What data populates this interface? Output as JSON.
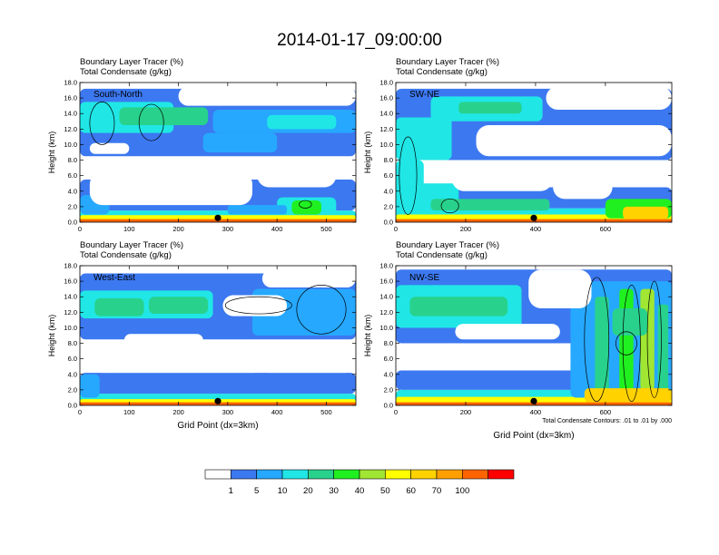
{
  "chart_data": {
    "title": "2014-01-17_09:00:00",
    "type": "heatmap",
    "fields": [
      "Boundary Layer Tracer",
      "Total Condensate"
    ],
    "field_units": [
      "(%)",
      "(g/kg)"
    ],
    "colorbar": {
      "levels": [
        "1",
        "5",
        "10",
        "20",
        "30",
        "40",
        "50",
        "60",
        "70",
        "100"
      ],
      "colors": [
        "#ffffff",
        "#3c78f0",
        "#26a8ff",
        "#20e6e6",
        "#28d28c",
        "#20f020",
        "#a0e632",
        "#ffff00",
        "#ffd200",
        "#ffa000",
        "#ff6400",
        "#ff0000"
      ]
    },
    "contour_note": "Total Condensate Contours: .01 to .01 by .000",
    "ylabel": "Height (km)",
    "xlabel": "Grid Point (dx=3km)",
    "ylim": [
      0,
      18
    ],
    "yticks": [
      "0.0",
      "2.0",
      "4.0",
      "6.0",
      "8.0",
      "10.0",
      "12.0",
      "14.0",
      "16.0",
      "18.0"
    ],
    "panels": [
      {
        "label": "South-North",
        "xlim": [
          0,
          560
        ],
        "xticks": [
          "0",
          "100",
          "200",
          "300",
          "400",
          "500"
        ],
        "marker_x": 280,
        "xlabel_shown": false,
        "note_shown": false,
        "features": [
          {
            "x": [
              0,
              560
            ],
            "y": [
              0,
              1.5
            ],
            "v": 3
          },
          {
            "x": [
              0,
              560
            ],
            "y": [
              0,
              0.9
            ],
            "v": 7
          },
          {
            "x": [
              0,
              560
            ],
            "y": [
              0,
              0.4
            ],
            "v": 10
          },
          {
            "x": [
              0,
              560
            ],
            "y": [
              8.5,
              17.2
            ],
            "v": 1
          },
          {
            "x": [
              0,
              560
            ],
            "y": [
              1.5,
              5.5
            ],
            "v": 1
          },
          {
            "x": [
              0,
              190
            ],
            "y": [
              11.5,
              15.5
            ],
            "v": 3
          },
          {
            "x": [
              80,
              260
            ],
            "y": [
              12.5,
              14.8
            ],
            "v": 4
          },
          {
            "x": [
              270,
              560
            ],
            "y": [
              11.5,
              14.5
            ],
            "v": 2
          },
          {
            "x": [
              380,
              520
            ],
            "y": [
              12,
              13.8
            ],
            "v": 3
          },
          {
            "x": [
              250,
              400
            ],
            "y": [
              9,
              11.5
            ],
            "v": 2
          },
          {
            "x": [
              400,
              520
            ],
            "y": [
              1,
              3.2
            ],
            "v": 3
          },
          {
            "x": [
              430,
              490
            ],
            "y": [
              1,
              2.8
            ],
            "v": 5
          },
          {
            "x": [
              300,
              420
            ],
            "y": [
              1,
              2.2
            ],
            "v": 2
          },
          {
            "x": [
              0,
              60
            ],
            "y": [
              1,
              3.5
            ],
            "v": 2
          }
        ],
        "holes": [
          {
            "x": [
              20,
              350
            ],
            "y": [
              2.2,
              6.5
            ]
          },
          {
            "x": [
              180,
              380
            ],
            "y": [
              6,
              8.2
            ]
          },
          {
            "x": [
              360,
              520
            ],
            "y": [
              4.5,
              7.5
            ]
          },
          {
            "x": [
              200,
              560
            ],
            "y": [
              15,
              17.5
            ]
          },
          {
            "x": [
              20,
              100
            ],
            "y": [
              8.8,
              10.2
            ]
          }
        ],
        "contours": [
          {
            "x": [
              20,
              70
            ],
            "y": [
              10,
              15.5
            ]
          },
          {
            "x": [
              120,
              170
            ],
            "y": [
              10.5,
              15.2
            ]
          },
          {
            "x": [
              445,
              470
            ],
            "y": [
              1.8,
              2.8
            ]
          }
        ]
      },
      {
        "label": "SW-NE",
        "xlim": [
          0,
          790
        ],
        "xticks": [
          "0",
          "200",
          "400",
          "600"
        ],
        "marker_x": 395,
        "xlabel_shown": false,
        "note_shown": false,
        "features": [
          {
            "x": [
              0,
              790
            ],
            "y": [
              0,
              1.8
            ],
            "v": 3
          },
          {
            "x": [
              0,
              790
            ],
            "y": [
              0,
              1.0
            ],
            "v": 7
          },
          {
            "x": [
              0,
              790
            ],
            "y": [
              0,
              0.4
            ],
            "v": 10
          },
          {
            "x": [
              0,
              790
            ],
            "y": [
              8,
              17.2
            ],
            "v": 1
          },
          {
            "x": [
              0,
              790
            ],
            "y": [
              1.8,
              4.5
            ],
            "v": 1
          },
          {
            "x": [
              0,
              160
            ],
            "y": [
              8,
              13.5
            ],
            "v": 3
          },
          {
            "x": [
              100,
              420
            ],
            "y": [
              13,
              16.2
            ],
            "v": 3
          },
          {
            "x": [
              180,
              360
            ],
            "y": [
              14,
              15.5
            ],
            "v": 4
          },
          {
            "x": [
              0,
              80
            ],
            "y": [
              1,
              8
            ],
            "v": 3
          },
          {
            "x": [
              30,
              180
            ],
            "y": [
              1.5,
              5
            ],
            "v": 3
          },
          {
            "x": [
              100,
              440
            ],
            "y": [
              1.5,
              3
            ],
            "v": 4
          },
          {
            "x": [
              600,
              790
            ],
            "y": [
              0.5,
              3
            ],
            "v": 5
          },
          {
            "x": [
              650,
              780
            ],
            "y": [
              0.4,
              2
            ],
            "v": 8
          }
        ],
        "holes": [
          {
            "x": [
              160,
              450
            ],
            "y": [
              4,
              7.8
            ]
          },
          {
            "x": [
              230,
              790
            ],
            "y": [
              8.5,
              12.5
            ]
          },
          {
            "x": [
              430,
              790
            ],
            "y": [
              14.5,
              17.5
            ]
          },
          {
            "x": [
              450,
              620
            ],
            "y": [
              3,
              6
            ]
          }
        ],
        "contours": [
          {
            "x": [
              10,
              60
            ],
            "y": [
              1,
              11
            ]
          },
          {
            "x": [
              130,
              180
            ],
            "y": [
              1.2,
              3
            ]
          }
        ]
      },
      {
        "label": "West-East",
        "xlim": [
          0,
          560
        ],
        "xticks": [
          "0",
          "100",
          "200",
          "300",
          "400",
          "500"
        ],
        "marker_x": 280,
        "xlabel_shown": true,
        "note_shown": false,
        "features": [
          {
            "x": [
              0,
              560
            ],
            "y": [
              0,
              1.5
            ],
            "v": 3
          },
          {
            "x": [
              0,
              560
            ],
            "y": [
              0,
              0.8
            ],
            "v": 7
          },
          {
            "x": [
              0,
              560
            ],
            "y": [
              0,
              0.4
            ],
            "v": 10
          },
          {
            "x": [
              0,
              560
            ],
            "y": [
              8.5,
              17
            ],
            "v": 1
          },
          {
            "x": [
              0,
              560
            ],
            "y": [
              1.5,
              4.2
            ],
            "v": 1
          },
          {
            "x": [
              0,
              270
            ],
            "y": [
              11.2,
              14.8
            ],
            "v": 3
          },
          {
            "x": [
              30,
              130
            ],
            "y": [
              11.5,
              13.8
            ],
            "v": 4
          },
          {
            "x": [
              140,
              260
            ],
            "y": [
              11.8,
              14
            ],
            "v": 4
          },
          {
            "x": [
              350,
              560
            ],
            "y": [
              9,
              15
            ],
            "v": 2
          },
          {
            "x": [
              0,
              40
            ],
            "y": [
              1,
              4
            ],
            "v": 2
          }
        ],
        "holes": [
          {
            "x": [
              20,
              380
            ],
            "y": [
              4.2,
              7.6
            ]
          },
          {
            "x": [
              90,
              250
            ],
            "y": [
              7.6,
              9.2
            ]
          },
          {
            "x": [
              360,
              560
            ],
            "y": [
              4.2,
              7
            ]
          },
          {
            "x": [
              370,
              560
            ],
            "y": [
              15.2,
              17.5
            ]
          },
          {
            "x": [
              290,
              420
            ],
            "y": [
              11.5,
              14.2
            ]
          }
        ],
        "contours": [
          {
            "x": [
              295,
              430
            ],
            "y": [
              11.8,
              14
            ]
          },
          {
            "x": [
              440,
              540
            ],
            "y": [
              9.2,
              15.5
            ]
          }
        ]
      },
      {
        "label": "NW-SE",
        "xlim": [
          0,
          790
        ],
        "xticks": [
          "0",
          "200",
          "400",
          "600"
        ],
        "marker_x": 395,
        "xlabel_shown": true,
        "note_shown": true,
        "features": [
          {
            "x": [
              0,
              790
            ],
            "y": [
              0,
              2
            ],
            "v": 3
          },
          {
            "x": [
              0,
              790
            ],
            "y": [
              0,
              1.1
            ],
            "v": 7
          },
          {
            "x": [
              0,
              790
            ],
            "y": [
              0,
              0.4
            ],
            "v": 10
          },
          {
            "x": [
              0,
              790
            ],
            "y": [
              8,
              17.5
            ],
            "v": 1
          },
          {
            "x": [
              0,
              790
            ],
            "y": [
              2,
              4.5
            ],
            "v": 1
          },
          {
            "x": [
              0,
              360
            ],
            "y": [
              10,
              15.5
            ],
            "v": 3
          },
          {
            "x": [
              40,
              320
            ],
            "y": [
              11.5,
              14
            ],
            "v": 4
          },
          {
            "x": [
              500,
              790
            ],
            "y": [
              1,
              16
            ],
            "v": 2
          },
          {
            "x": [
              570,
              610
            ],
            "y": [
              1,
              14
            ],
            "v": 4
          },
          {
            "x": [
              640,
              680
            ],
            "y": [
              1,
              15
            ],
            "v": 5
          },
          {
            "x": [
              700,
              740
            ],
            "y": [
              2,
              15
            ],
            "v": 6
          },
          {
            "x": [
              750,
              780
            ],
            "y": [
              1.5,
              13
            ],
            "v": 4
          },
          {
            "x": [
              620,
              720
            ],
            "y": [
              9,
              12.5
            ],
            "v": 4
          },
          {
            "x": [
              540,
              790
            ],
            "y": [
              0.4,
              2.2
            ],
            "v": 8
          }
        ],
        "holes": [
          {
            "x": [
              10,
              350
            ],
            "y": [
              4.5,
              8
            ]
          },
          {
            "x": [
              170,
              470
            ],
            "y": [
              8.5,
              10.5
            ]
          },
          {
            "x": [
              380,
              560
            ],
            "y": [
              12.5,
              17.5
            ]
          },
          {
            "x": [
              330,
              500
            ],
            "y": [
              4.5,
              7
            ]
          }
        ],
        "contours": [
          {
            "x": [
              540,
              610
            ],
            "y": [
              0.5,
              16.5
            ]
          },
          {
            "x": [
              650,
              700
            ],
            "y": [
              0.5,
              15.5
            ]
          },
          {
            "x": [
              720,
              760
            ],
            "y": [
              1,
              16
            ]
          },
          {
            "x": [
              630,
              690
            ],
            "y": [
              6.5,
              9.5
            ]
          }
        ]
      }
    ]
  }
}
